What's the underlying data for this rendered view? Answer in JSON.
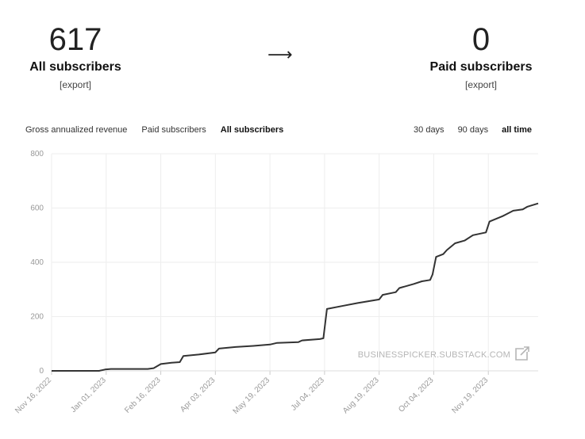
{
  "summary": {
    "left": {
      "value": "617",
      "label": "All subscribers",
      "export_label": "[export]"
    },
    "arrow": "⟶",
    "right": {
      "value": "0",
      "label": "Paid subscribers",
      "export_label": "[export]"
    }
  },
  "metric_tabs": [
    {
      "label": "Gross annualized revenue",
      "active": false
    },
    {
      "label": "Paid subscribers",
      "active": false
    },
    {
      "label": "All subscribers",
      "active": true
    }
  ],
  "range_tabs": [
    {
      "label": "30 days",
      "active": false
    },
    {
      "label": "90 days",
      "active": false
    },
    {
      "label": "all time",
      "active": true
    }
  ],
  "watermark": {
    "text": "BUSINESSPICKER.SUBSTACK.COM",
    "icon": "external-link-icon"
  },
  "colors": {
    "line": "#333333",
    "grid": "#eeeeee",
    "tick": "#999999"
  },
  "chart_data": {
    "type": "line",
    "title": "",
    "xlabel": "",
    "ylabel": "",
    "ylim": [
      0,
      800
    ],
    "yticks": [
      0,
      200,
      400,
      600,
      800
    ],
    "grid": true,
    "x_axis": {
      "start": "2022-11-16",
      "end": "2023-12-31",
      "ticks": [
        {
          "date": "2022-11-16",
          "label": "Nov 16, 2022"
        },
        {
          "date": "2023-01-01",
          "label": "Jan 01, 2023"
        },
        {
          "date": "2023-02-16",
          "label": "Feb 16, 2023"
        },
        {
          "date": "2023-04-03",
          "label": "Apr 03, 2023"
        },
        {
          "date": "2023-05-19",
          "label": "May 19, 2023"
        },
        {
          "date": "2023-07-04",
          "label": "Jul 04, 2023"
        },
        {
          "date": "2023-08-19",
          "label": "Aug 19, 2023"
        },
        {
          "date": "2023-10-04",
          "label": "Oct 04, 2023"
        },
        {
          "date": "2023-11-19",
          "label": "Nov 19, 2023"
        }
      ]
    },
    "series": [
      {
        "points": [
          [
            "2022-11-16",
            0
          ],
          [
            "2022-12-26",
            0
          ],
          [
            "2022-12-31",
            5
          ],
          [
            "2023-01-05",
            7
          ],
          [
            "2023-02-05",
            7
          ],
          [
            "2023-02-10",
            10
          ],
          [
            "2023-02-16",
            25
          ],
          [
            "2023-02-25",
            30
          ],
          [
            "2023-03-04",
            32
          ],
          [
            "2023-03-07",
            55
          ],
          [
            "2023-03-20",
            60
          ],
          [
            "2023-04-03",
            68
          ],
          [
            "2023-04-06",
            82
          ],
          [
            "2023-04-20",
            88
          ],
          [
            "2023-05-05",
            92
          ],
          [
            "2023-05-19",
            97
          ],
          [
            "2023-05-25",
            103
          ],
          [
            "2023-06-12",
            106
          ],
          [
            "2023-06-15",
            112
          ],
          [
            "2023-06-30",
            117
          ],
          [
            "2023-07-03",
            120
          ],
          [
            "2023-07-06",
            228
          ],
          [
            "2023-07-20",
            240
          ],
          [
            "2023-08-01",
            250
          ],
          [
            "2023-08-19",
            263
          ],
          [
            "2023-08-22",
            280
          ],
          [
            "2023-09-02",
            290
          ],
          [
            "2023-09-05",
            305
          ],
          [
            "2023-09-17",
            320
          ],
          [
            "2023-09-24",
            330
          ],
          [
            "2023-10-01",
            335
          ],
          [
            "2023-10-03",
            355
          ],
          [
            "2023-10-06",
            420
          ],
          [
            "2023-10-12",
            430
          ],
          [
            "2023-10-15",
            445
          ],
          [
            "2023-10-22",
            470
          ],
          [
            "2023-10-30",
            480
          ],
          [
            "2023-11-06",
            500
          ],
          [
            "2023-11-17",
            510
          ],
          [
            "2023-11-20",
            550
          ],
          [
            "2023-12-01",
            570
          ],
          [
            "2023-12-10",
            590
          ],
          [
            "2023-12-18",
            595
          ],
          [
            "2023-12-22",
            605
          ],
          [
            "2023-12-31",
            617
          ]
        ]
      }
    ]
  }
}
